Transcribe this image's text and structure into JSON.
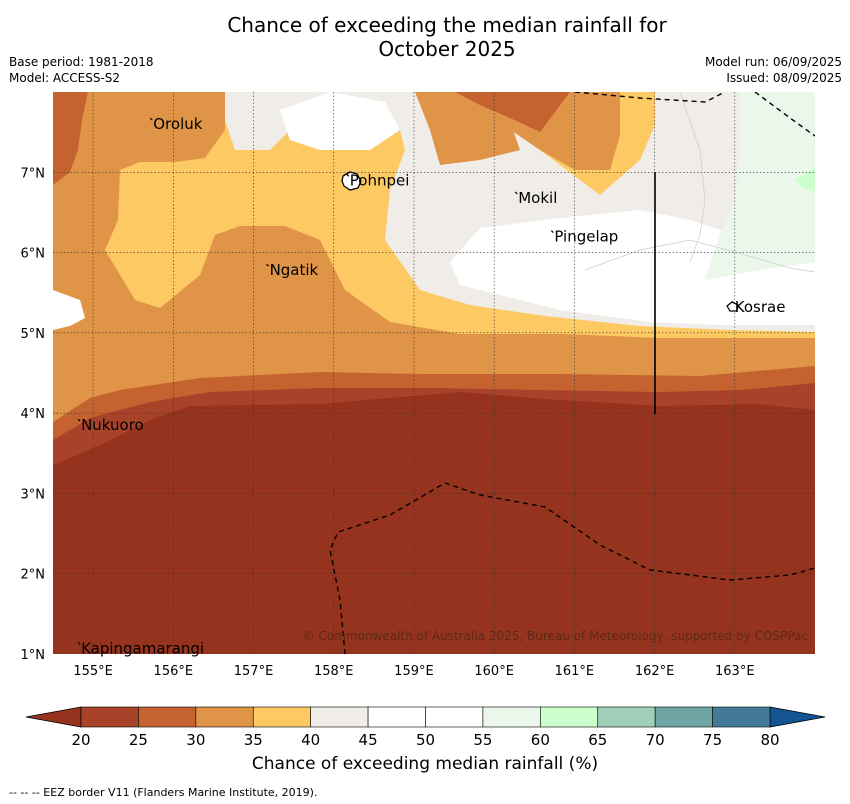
{
  "title_line1": "Chance of exceeding the median rainfall for",
  "title_line2": "October 2025",
  "meta": {
    "base_period": "Base period: 1981-2018",
    "model": "Model: ACCESS-S2",
    "model_run": "Model run: 06/09/2025",
    "issued": "Issued: 08/09/2025"
  },
  "map": {
    "lon_range": [
      154.5,
      164
    ],
    "lat_range": [
      1,
      8
    ],
    "lon_ticks": [
      {
        "value": 155,
        "label": "155°E"
      },
      {
        "value": 156,
        "label": "156°E"
      },
      {
        "value": 157,
        "label": "157°E"
      },
      {
        "value": 158,
        "label": "158°E"
      },
      {
        "value": 159,
        "label": "159°E"
      },
      {
        "value": 160,
        "label": "160°E"
      },
      {
        "value": 161,
        "label": "161°E"
      },
      {
        "value": 162,
        "label": "162°E"
      },
      {
        "value": 163,
        "label": "163°E"
      }
    ],
    "lat_ticks": [
      {
        "value": 7,
        "label": "7°N"
      },
      {
        "value": 6,
        "label": "6°N"
      },
      {
        "value": 5,
        "label": "5°N"
      },
      {
        "value": 4,
        "label": "4°N"
      },
      {
        "value": 3,
        "label": "3°N"
      },
      {
        "value": 2,
        "label": "2°N"
      },
      {
        "value": 1,
        "label": "1°N"
      }
    ],
    "places": [
      {
        "name": "Oroluk",
        "lon": 155.75,
        "lat": 7.6
      },
      {
        "name": "Pohnpei",
        "lon": 158.2,
        "lat": 6.9
      },
      {
        "name": "Mokil",
        "lon": 160.3,
        "lat": 6.68
      },
      {
        "name": "Pingelap",
        "lon": 160.75,
        "lat": 6.2
      },
      {
        "name": "Ngatik",
        "lon": 157.2,
        "lat": 5.78
      },
      {
        "name": "Kosrae",
        "lon": 163.0,
        "lat": 5.32
      },
      {
        "name": "Nukuoro",
        "lon": 154.85,
        "lat": 3.85
      },
      {
        "name": "Kapingamarangi",
        "lon": 154.85,
        "lat": 1.07
      }
    ],
    "copyright": "© Commonwealth of Australia 2025, Bureau of Meteorology, supported by COSPPac"
  },
  "colorbar": {
    "levels": [
      20,
      25,
      30,
      35,
      40,
      45,
      50,
      55,
      60,
      65,
      70,
      75,
      80
    ],
    "labels": [
      "20",
      "25",
      "30",
      "35",
      "40",
      "45",
      "50",
      "55",
      "60",
      "65",
      "70",
      "75",
      "80"
    ],
    "colors": [
      "#a8432a",
      "#c56330",
      "#e09448",
      "#fdc963",
      "#f0ede8",
      "#ffffff",
      "#ffffff",
      "#eaf7ea",
      "#ccffcc",
      "#9fcfb8",
      "#6fa5a5",
      "#427a98"
    ],
    "under_color": "#96331e",
    "over_color": "#135593",
    "label": "Chance of exceeding median rainfall (%)"
  },
  "footnote": "--  --  -- EEZ border V11 (Flanders Marine Institute, 2019)."
}
